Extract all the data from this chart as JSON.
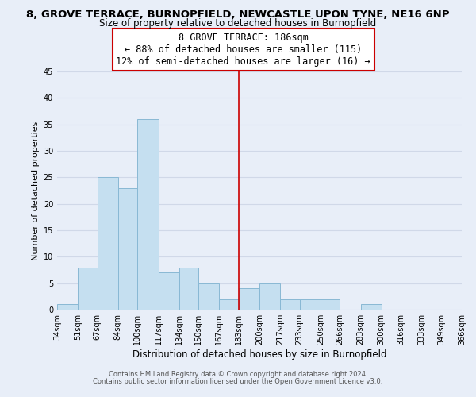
{
  "title_line1": "8, GROVE TERRACE, BURNOPFIELD, NEWCASTLE UPON TYNE, NE16 6NP",
  "title_line2": "Size of property relative to detached houses in Burnopfield",
  "xlabel": "Distribution of detached houses by size in Burnopfield",
  "ylabel": "Number of detached properties",
  "bin_edges": [
    34,
    51,
    67,
    84,
    100,
    117,
    134,
    150,
    167,
    183,
    200,
    217,
    233,
    250,
    266,
    283,
    300,
    316,
    333,
    349,
    366
  ],
  "bin_counts": [
    1,
    8,
    25,
    23,
    36,
    7,
    8,
    5,
    2,
    4,
    5,
    2,
    2,
    2,
    0,
    1,
    0,
    0,
    0,
    0
  ],
  "bar_color": "#c5dff0",
  "bar_edge_color": "#89b8d4",
  "vline_x": 183,
  "vline_color": "#cc0000",
  "ylim": [
    0,
    45
  ],
  "yticks": [
    0,
    5,
    10,
    15,
    20,
    25,
    30,
    35,
    40,
    45
  ],
  "annotation_line1": "8 GROVE TERRACE: 186sqm",
  "annotation_line2": "← 88% of detached houses are smaller (115)",
  "annotation_line3": "12% of semi-detached houses are larger (16) →",
  "annotation_box_edgecolor": "#cc0000",
  "footer_line1": "Contains HM Land Registry data © Crown copyright and database right 2024.",
  "footer_line2": "Contains public sector information licensed under the Open Government Licence v3.0.",
  "background_color": "#e8eef8",
  "grid_color": "#d0d8e8",
  "title_fontsize": 9.5,
  "subtitle_fontsize": 8.5,
  "ylabel_fontsize": 8,
  "xlabel_fontsize": 8.5,
  "tick_label_fontsize": 7,
  "annotation_fontsize": 8.5,
  "footer_fontsize": 6
}
